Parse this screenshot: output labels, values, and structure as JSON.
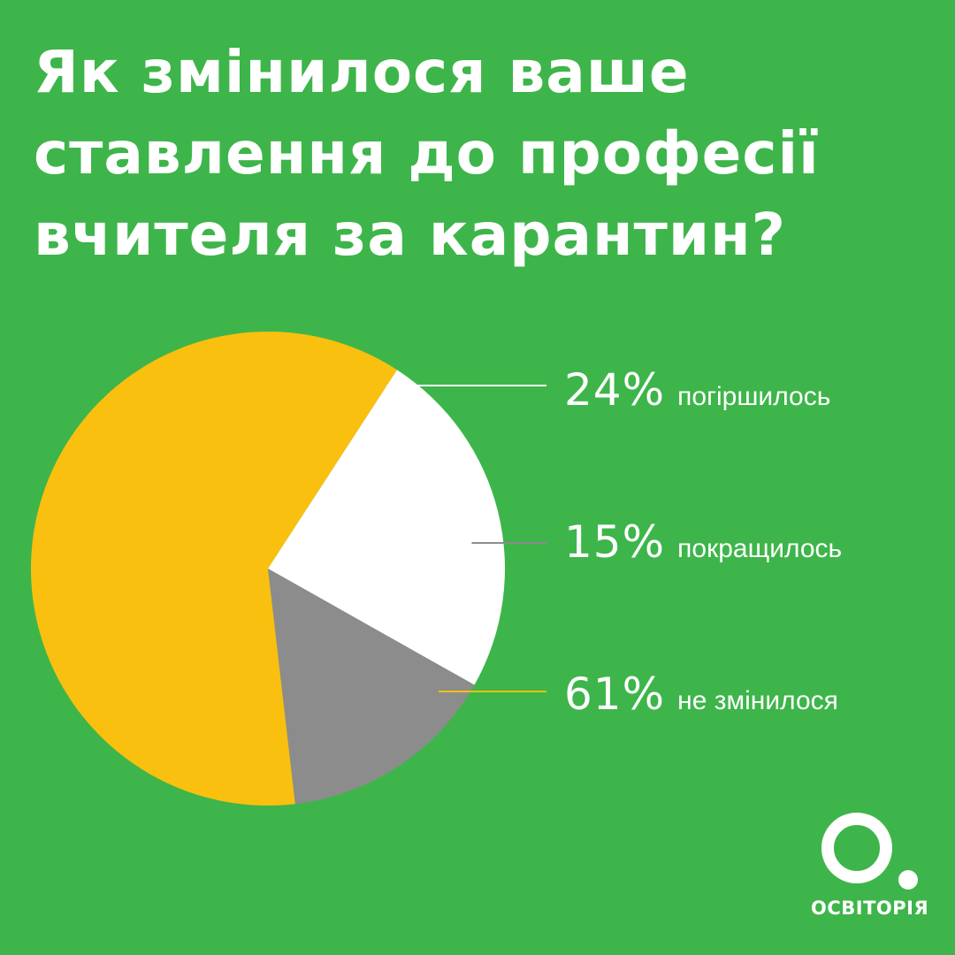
{
  "title_lines": [
    "Як змінилося ваше",
    "ставлення до професії",
    "вчителя за карантин?"
  ],
  "chart_data": {
    "type": "pie",
    "title": "Як змінилося ваше ставлення до професії вчителя за карантин?",
    "slices": [
      {
        "label": "погіршилось",
        "value": 24,
        "display": "24%",
        "color": "#ffffff"
      },
      {
        "label": "покращилось",
        "value": 15,
        "display": "15%",
        "color": "#8c8c8c"
      },
      {
        "label": "не змінилося",
        "value": 61,
        "display": "61%",
        "color": "#f9c00f"
      }
    ],
    "start_angle_deg": -57,
    "direction": "clockwise"
  },
  "logo": {
    "mark": "О.",
    "text": "ОСВІТОРІЯ"
  },
  "colors": {
    "background": "#3db54a",
    "text": "#ffffff"
  }
}
